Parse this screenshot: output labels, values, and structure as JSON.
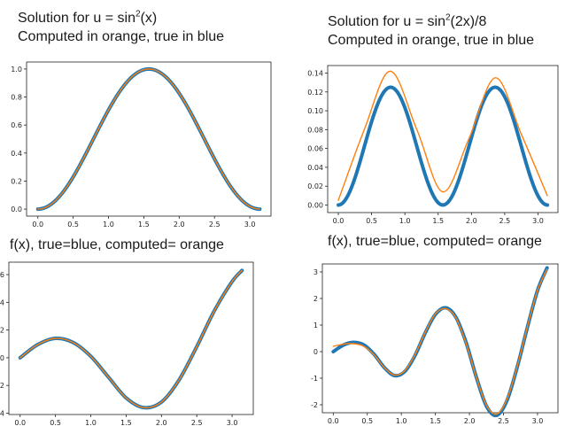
{
  "captions": {
    "tl_line1_pre": "Solution for u = sin",
    "tl_line1_sup": "2",
    "tl_line1_post": "(x)",
    "tl_line2": "Computed in orange,  true in blue",
    "tr_line1_pre": "Solution for u = sin",
    "tr_line1_sup": "2",
    "tr_line1_post": "(2x)/8",
    "tr_line2": "Computed in orange,  true in blue",
    "bl": "f(x), true=blue, computed= orange",
    "br": "f(x), true=blue, computed= orange"
  },
  "chart_data": [
    {
      "id": "top-left",
      "type": "line",
      "title": "",
      "xlabel": "",
      "ylabel": "",
      "xlim": [
        -0.16,
        3.3
      ],
      "ylim": [
        -0.05,
        1.05
      ],
      "xticks": [
        0.0,
        0.5,
        1.0,
        1.5,
        2.0,
        2.5,
        3.0
      ],
      "xtick_labels": [
        "0.0",
        "0.5",
        "1.0",
        "1.5",
        "2.0",
        "2.5",
        "3.0"
      ],
      "yticks": [
        0.0,
        0.2,
        0.4,
        0.6,
        0.8,
        1.0
      ],
      "ytick_labels": [
        "0.0",
        "0.2",
        "0.4",
        "0.6",
        "0.8",
        "1.0"
      ],
      "grid": false,
      "series": [
        {
          "color": "#1f77b4",
          "width": "thick",
          "formula": "sin(x)^2",
          "x_range": [
            0,
            3.1416
          ]
        },
        {
          "color": "#ff7f0e",
          "width": "thin",
          "formula": "sin(x)^2",
          "x_range": [
            0,
            3.1416
          ]
        }
      ]
    },
    {
      "id": "top-right",
      "type": "line",
      "title": "",
      "xlabel": "",
      "ylabel": "",
      "xlim": [
        -0.16,
        3.3
      ],
      "ylim": [
        -0.008,
        0.148
      ],
      "xticks": [
        0.0,
        0.5,
        1.0,
        1.5,
        2.0,
        2.5,
        3.0
      ],
      "xtick_labels": [
        "0.0",
        "0.5",
        "1.0",
        "1.5",
        "2.0",
        "2.5",
        "3.0"
      ],
      "yticks": [
        0.0,
        0.02,
        0.04,
        0.06,
        0.08,
        0.1,
        0.12,
        0.14
      ],
      "ytick_labels": [
        "0.00",
        "0.02",
        "0.04",
        "0.06",
        "0.08",
        "0.10",
        "0.12",
        "0.14"
      ],
      "grid": false,
      "series": [
        {
          "color": "#1f77b4",
          "width": "thick",
          "formula": "sin(2x)^2/8",
          "x_range": [
            0,
            3.1416
          ]
        },
        {
          "color": "#ff7f0e",
          "width": "thin",
          "formula": "computed approximation",
          "x_range": [
            0,
            3.1416
          ],
          "points": [
            [
              0,
              0.005
            ],
            [
              0.39,
              0.08
            ],
            [
              0.78,
              0.142
            ],
            [
              1.18,
              0.08
            ],
            [
              1.57,
              0.014
            ],
            [
              1.96,
              0.07
            ],
            [
              2.36,
              0.135
            ],
            [
              2.75,
              0.075
            ],
            [
              3.14,
              0.01
            ]
          ]
        }
      ]
    },
    {
      "id": "bottom-left",
      "type": "line",
      "title": "",
      "xlabel": "",
      "ylabel": "",
      "xlim": [
        -0.16,
        3.3
      ],
      "ylim": [
        -4.1,
        6.9
      ],
      "xticks": [
        0.0,
        0.5,
        1.0,
        1.5,
        2.0,
        2.5,
        3.0
      ],
      "xtick_labels": [
        "0.0",
        "0.5",
        "1.0",
        "1.5",
        "2.0",
        "2.5",
        "3.0"
      ],
      "yticks": [
        -4,
        -2,
        0,
        2,
        4,
        6
      ],
      "ytick_labels": [
        "-4",
        "-2",
        "0",
        "2",
        "4",
        "6"
      ],
      "grid": false,
      "series": [
        {
          "color": "#1f77b4",
          "width": "thick",
          "points": [
            [
              0,
              0
            ],
            [
              0.25,
              0.95
            ],
            [
              0.5,
              1.4
            ],
            [
              0.75,
              1.1
            ],
            [
              1.0,
              0.1
            ],
            [
              1.25,
              -1.4
            ],
            [
              1.5,
              -2.9
            ],
            [
              1.75,
              -3.6
            ],
            [
              2.0,
              -3.2
            ],
            [
              2.25,
              -1.6
            ],
            [
              2.5,
              0.8
            ],
            [
              2.75,
              3.4
            ],
            [
              3.0,
              5.5
            ],
            [
              3.14,
              6.3
            ]
          ]
        },
        {
          "color": "#ff7f0e",
          "width": "thin",
          "points": [
            [
              0,
              0
            ],
            [
              0.25,
              0.95
            ],
            [
              0.5,
              1.4
            ],
            [
              0.75,
              1.1
            ],
            [
              1.0,
              0.1
            ],
            [
              1.25,
              -1.4
            ],
            [
              1.5,
              -2.9
            ],
            [
              1.75,
              -3.6
            ],
            [
              2.0,
              -3.2
            ],
            [
              2.25,
              -1.6
            ],
            [
              2.5,
              0.8
            ],
            [
              2.75,
              3.4
            ],
            [
              3.0,
              5.5
            ],
            [
              3.14,
              6.3
            ]
          ]
        }
      ]
    },
    {
      "id": "bottom-right",
      "type": "line",
      "title": "",
      "xlabel": "",
      "ylabel": "",
      "xlim": [
        -0.16,
        3.3
      ],
      "ylim": [
        -2.3,
        3.3
      ],
      "xticks": [
        0.0,
        0.5,
        1.0,
        1.5,
        2.0,
        2.5,
        3.0
      ],
      "xtick_labels": [
        "0.0",
        "0.5",
        "1.0",
        "1.5",
        "2.0",
        "2.5",
        "3.0"
      ],
      "yticks": [
        -2,
        -1,
        0,
        1,
        2,
        3
      ],
      "ytick_labels": [
        "-2",
        "-1",
        "0",
        "1",
        "2",
        "3"
      ],
      "grid": false,
      "series": [
        {
          "color": "#1f77b4",
          "width": "thick",
          "points": [
            [
              0,
              0
            ],
            [
              0.15,
              0.25
            ],
            [
              0.3,
              0.35
            ],
            [
              0.45,
              0.25
            ],
            [
              0.6,
              -0.1
            ],
            [
              0.75,
              -0.6
            ],
            [
              0.9,
              -0.9
            ],
            [
              1.05,
              -0.75
            ],
            [
              1.2,
              -0.15
            ],
            [
              1.35,
              0.7
            ],
            [
              1.5,
              1.4
            ],
            [
              1.65,
              1.65
            ],
            [
              1.8,
              1.3
            ],
            [
              1.95,
              0.35
            ],
            [
              2.1,
              -0.95
            ],
            [
              2.25,
              -2.05
            ],
            [
              2.4,
              -2.4
            ],
            [
              2.55,
              -1.85
            ],
            [
              2.7,
              -0.6
            ],
            [
              2.85,
              0.9
            ],
            [
              3.0,
              2.3
            ],
            [
              3.14,
              3.15
            ]
          ]
        },
        {
          "color": "#ff7f0e",
          "width": "thin",
          "points": [
            [
              0,
              0.2
            ],
            [
              0.15,
              0.28
            ],
            [
              0.3,
              0.3
            ],
            [
              0.45,
              0.2
            ],
            [
              0.6,
              -0.12
            ],
            [
              0.75,
              -0.6
            ],
            [
              0.9,
              -0.88
            ],
            [
              1.05,
              -0.72
            ],
            [
              1.2,
              -0.12
            ],
            [
              1.35,
              0.72
            ],
            [
              1.5,
              1.42
            ],
            [
              1.65,
              1.62
            ],
            [
              1.8,
              1.28
            ],
            [
              1.95,
              0.32
            ],
            [
              2.1,
              -0.95
            ],
            [
              2.25,
              -2.02
            ],
            [
              2.4,
              -2.35
            ],
            [
              2.55,
              -1.8
            ],
            [
              2.7,
              -0.58
            ],
            [
              2.85,
              0.92
            ],
            [
              3.0,
              2.3
            ],
            [
              3.14,
              3.1
            ]
          ]
        }
      ]
    }
  ]
}
